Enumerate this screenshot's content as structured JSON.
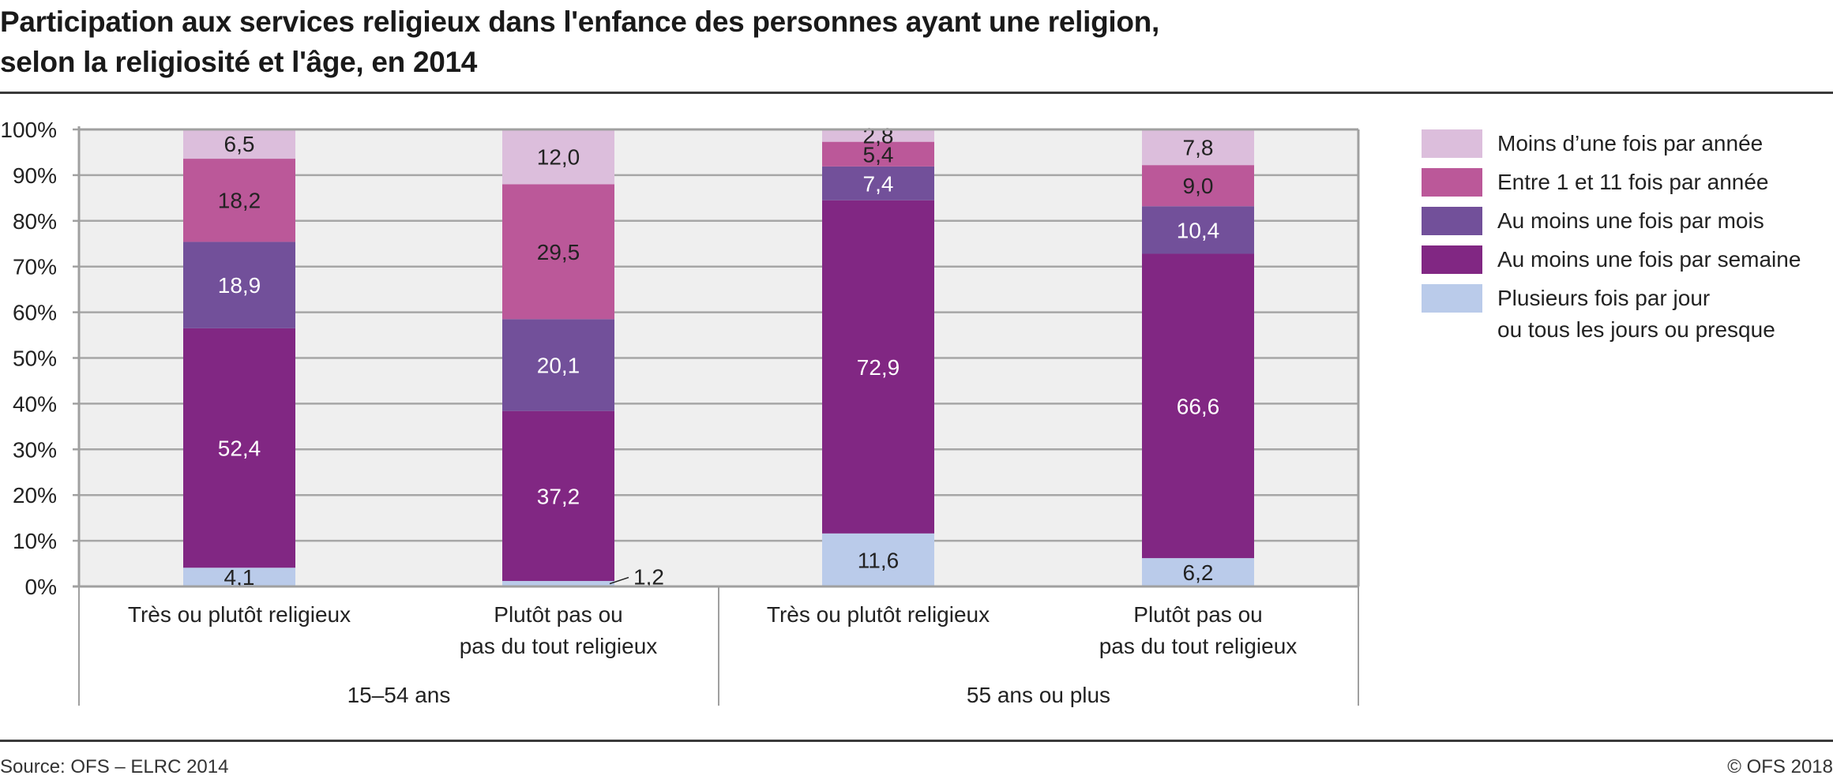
{
  "header": {
    "title_line1": "Participation aux services religieux dans l'enfance des personnes ayant une religion,",
    "title_line2": "selon la religiosité et l'âge, en 2014"
  },
  "footer": {
    "source": "Source: OFS – ELRC 2014",
    "copyright": "© OFS 2018"
  },
  "colors": {
    "plot_background": "#efefef",
    "grid": "#a6a6a6",
    "axis": "#a0a0a0",
    "label_dark": "#222222",
    "label_light": "#ffffff"
  },
  "chart_data": {
    "type": "bar",
    "stacked": true,
    "title": "Participation aux services religieux dans l'enfance des personnes ayant une religion, selon la religiosité et l'âge, en 2014",
    "xlabel": "",
    "ylabel": "",
    "ylim": [
      0,
      100
    ],
    "yticks": [
      "0%",
      "10%",
      "20%",
      "30%",
      "40%",
      "50%",
      "60%",
      "70%",
      "80%",
      "90%",
      "100%"
    ],
    "grid": true,
    "legend_position": "right",
    "groups": [
      {
        "label": "15–54 ans",
        "categories": [
          0,
          1
        ]
      },
      {
        "label": "55 ans ou plus",
        "categories": [
          2,
          3
        ]
      }
    ],
    "categories": [
      [
        "Très ou plutôt religieux"
      ],
      [
        "Plutôt pas ou",
        "pas du tout religieux"
      ],
      [
        "Très ou plutôt religieux"
      ],
      [
        "Plutôt pas ou",
        "pas du tout religieux"
      ]
    ],
    "series": [
      {
        "name": "Plusieurs fois par jour ou tous les jours ou presque",
        "legend_lines": [
          "Plusieurs fois par jour",
          "ou tous les jours ou presque"
        ],
        "color": "#bacbea",
        "label_color": "#222222",
        "values": [
          4.1,
          1.2,
          11.6,
          6.2
        ],
        "labels": [
          "4,1",
          "1,2",
          "11,6",
          "6,2"
        ]
      },
      {
        "name": "Au moins une fois par semaine",
        "legend_lines": [
          "Au moins une fois par semaine"
        ],
        "color": "#812783",
        "label_color": "#ffffff",
        "values": [
          52.4,
          37.2,
          72.9,
          66.6
        ],
        "labels": [
          "52,4",
          "37,2",
          "72,9",
          "66,6"
        ]
      },
      {
        "name": "Au moins une fois par mois",
        "legend_lines": [
          "Au moins une fois par mois"
        ],
        "color": "#72509a",
        "label_color": "#ffffff",
        "values": [
          18.9,
          20.1,
          7.4,
          10.4
        ],
        "labels": [
          "18,9",
          "20,1",
          "7,4",
          "10,4"
        ]
      },
      {
        "name": "Entre 1 et 11 fois par année",
        "legend_lines": [
          "Entre 1 et 11 fois par année"
        ],
        "color": "#bb5899",
        "label_color": "#222222",
        "values": [
          18.2,
          29.5,
          5.4,
          9.0
        ],
        "labels": [
          "18,2",
          "29,5",
          "5,4",
          "9,0"
        ]
      },
      {
        "name": "Moins d'une fois par année",
        "legend_lines": [
          "Moins d’une fois par année"
        ],
        "color": "#dcbedc",
        "label_color": "#222222",
        "values": [
          6.5,
          12.0,
          2.8,
          7.8
        ],
        "labels": [
          "6,5",
          "12,0",
          "2,8",
          "7,8"
        ]
      }
    ],
    "outside_labels": [
      {
        "series": 0,
        "category": 1,
        "text": "1,2"
      }
    ]
  }
}
